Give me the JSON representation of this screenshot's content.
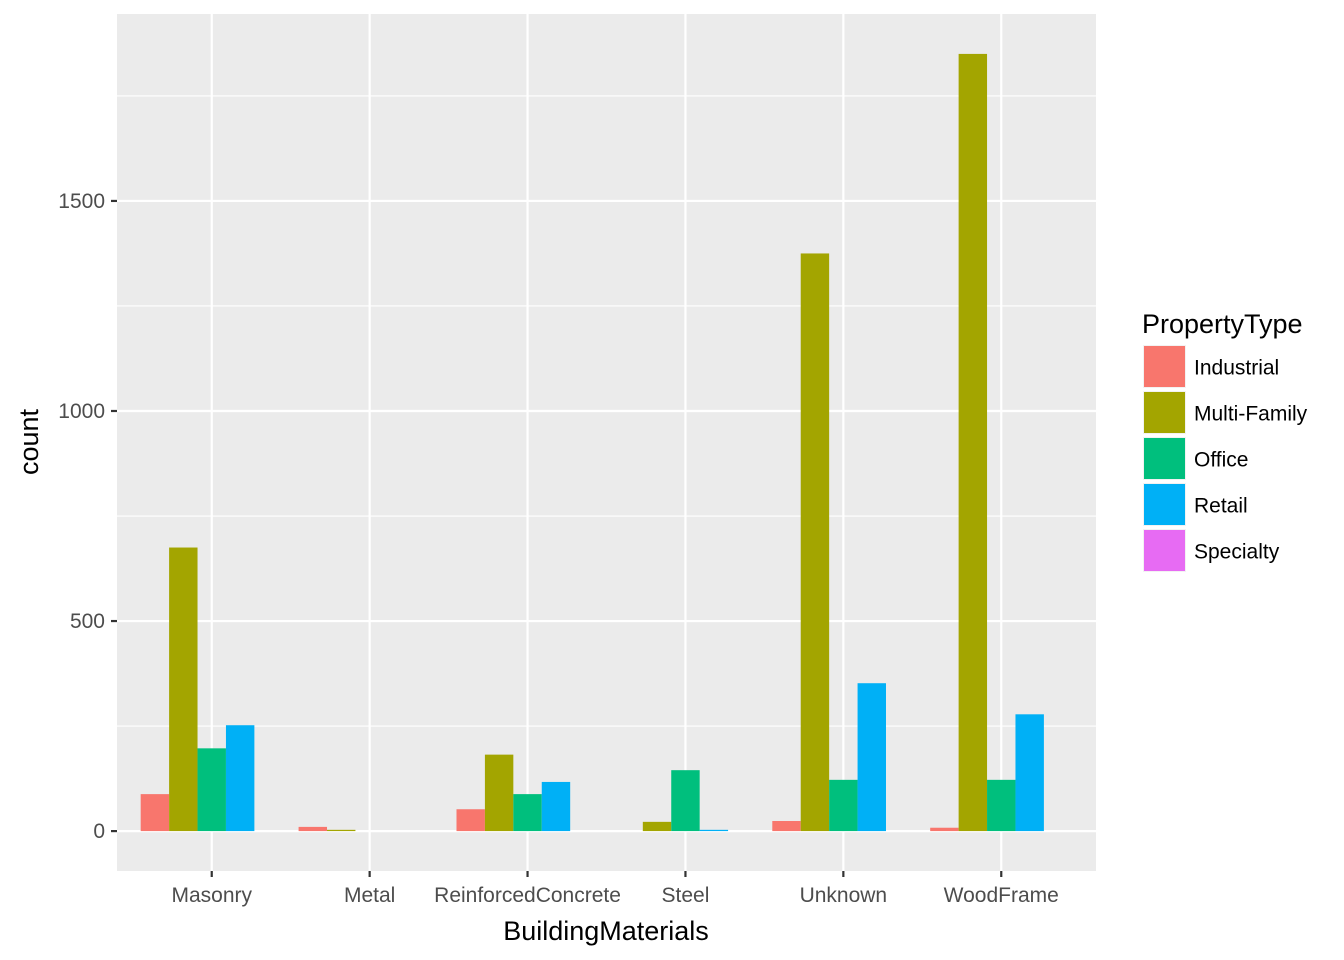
{
  "chart_data": {
    "type": "bar",
    "title": "",
    "xlabel": "BuildingMaterials",
    "ylabel": "count",
    "categories": [
      "Masonry",
      "Metal",
      "ReinforcedConcrete",
      "Steel",
      "Unknown",
      "WoodFrame"
    ],
    "series": [
      {
        "name": "Industrial",
        "color": "#F8766D",
        "values": [
          88,
          10,
          52,
          0,
          24,
          8
        ]
      },
      {
        "name": "Multi-Family",
        "color": "#A3A500",
        "values": [
          675,
          3,
          182,
          22,
          1375,
          1850
        ]
      },
      {
        "name": "Office",
        "color": "#00BF7D",
        "values": [
          197,
          0,
          88,
          145,
          122,
          122
        ]
      },
      {
        "name": "Retail",
        "color": "#00B0F6",
        "values": [
          252,
          0,
          117,
          3,
          352,
          278
        ]
      },
      {
        "name": "Specialty",
        "color": "#E76BF3",
        "values": [
          0,
          0,
          0,
          0,
          0,
          0
        ]
      }
    ],
    "ylim": [
      -95,
      1945
    ],
    "yticks": [
      0,
      500,
      1000,
      1500
    ],
    "ytick_labels": [
      "0",
      "500",
      "1000",
      "1500"
    ],
    "grid": true,
    "legend": {
      "title": "PropertyType",
      "position": "right"
    },
    "panel_background": "#EBEBEB",
    "grid_color": "#FFFFFF"
  }
}
